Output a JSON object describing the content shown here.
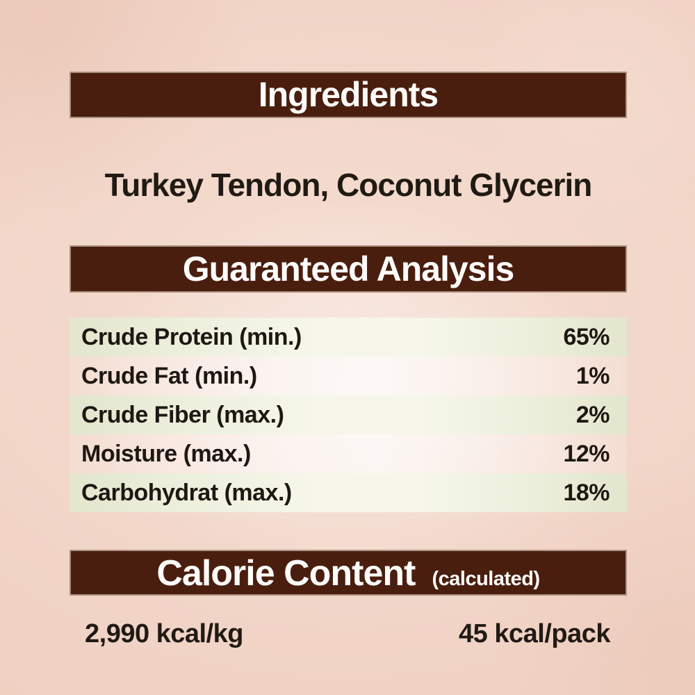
{
  "colors": {
    "background": "#f2d6c8",
    "header_bar": "#4a1e0e",
    "header_text": "#fdfcfa",
    "body_text": "#1e1813",
    "row_green": "#e3e6cd"
  },
  "ingredients": {
    "title": "Ingredients",
    "items": "Turkey Tendon, Coconut Glycerin"
  },
  "guaranteed_analysis": {
    "title": "Guaranteed Analysis",
    "rows": [
      {
        "label": "Crude Protein (min.)",
        "value": "65%"
      },
      {
        "label": "Crude Fat (min.)",
        "value": "1%"
      },
      {
        "label": "Crude Fiber (max.)",
        "value": "2%"
      },
      {
        "label": "Moisture (max.)",
        "value": "12%"
      },
      {
        "label": "Carbohydrat (max.)",
        "value": "18%"
      }
    ]
  },
  "calorie_content": {
    "title": "Calorie Content",
    "subtitle": "(calculated)",
    "per_kg": "2,990 kcal/kg",
    "per_pack": "45 kcal/pack"
  }
}
